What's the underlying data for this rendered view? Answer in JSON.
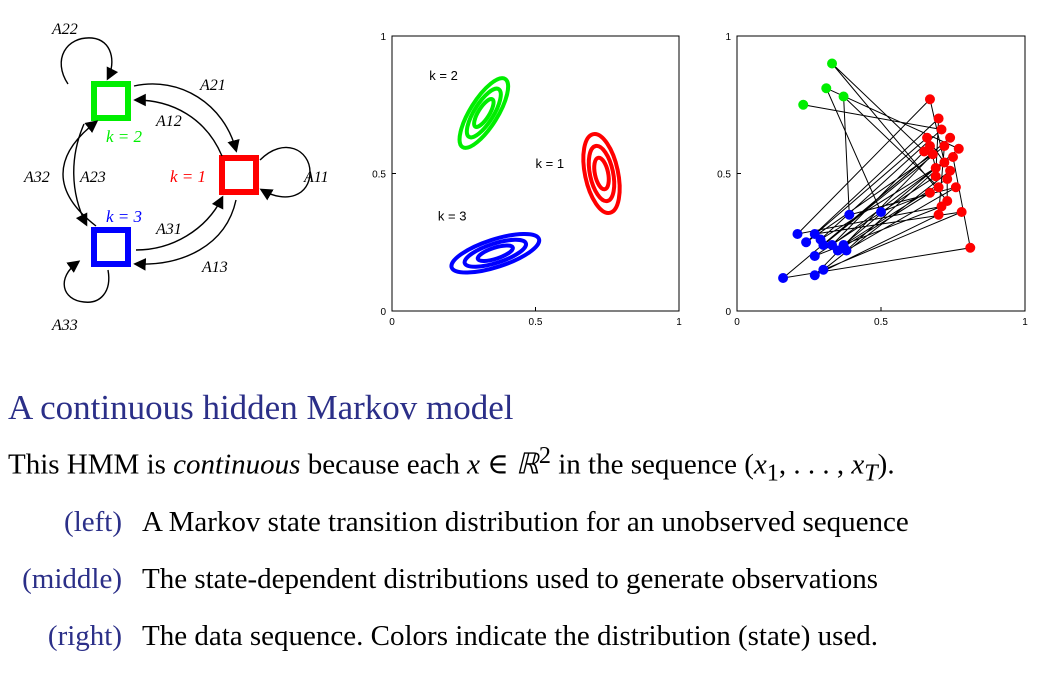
{
  "colors": {
    "state1": "#ff0000",
    "state2": "#00ee00",
    "state3": "#0000ff",
    "title": "#2b2f88"
  },
  "left_diagram": {
    "states": [
      {
        "id": "k1",
        "label": "k = 1",
        "color": "#ff0000"
      },
      {
        "id": "k2",
        "label": "k = 2",
        "color": "#00ee00"
      },
      {
        "id": "k3",
        "label": "k = 3",
        "color": "#0000ff"
      }
    ],
    "transitions": {
      "A11": "A11",
      "A12": "A12",
      "A13": "A13",
      "A21": "A21",
      "A22": "A22",
      "A23": "A23",
      "A31": "A31",
      "A32": "A32",
      "A33": "A33"
    }
  },
  "chart_data": [
    {
      "type": "contour",
      "xlim": [
        0,
        1
      ],
      "ylim": [
        0,
        1
      ],
      "xticks": [
        "0",
        "0.5",
        "1"
      ],
      "yticks": [
        "0",
        "0.5",
        "1"
      ],
      "clusters": [
        {
          "label": "k = 2",
          "color": "#00ee00",
          "center": [
            0.32,
            0.72
          ],
          "radii": [
            0.14,
            0.05
          ],
          "angle_deg": 58
        },
        {
          "label": "k = 1",
          "color": "#ff0000",
          "center": [
            0.73,
            0.5
          ],
          "radii": [
            0.14,
            0.06
          ],
          "angle_deg": -78
        },
        {
          "label": "k = 3",
          "color": "#0000ff",
          "center": [
            0.36,
            0.21
          ],
          "radii": [
            0.16,
            0.05
          ],
          "angle_deg": 18
        }
      ],
      "contour_scales": [
        1.0,
        0.7,
        0.4
      ]
    },
    {
      "type": "scatter",
      "xlim": [
        0,
        1
      ],
      "ylim": [
        0,
        1
      ],
      "xticks": [
        "0",
        "0.5",
        "1"
      ],
      "yticks": [
        "0",
        "0.5",
        "1"
      ],
      "connected": true,
      "points": [
        {
          "x": 0.23,
          "y": 0.75,
          "k": 2
        },
        {
          "x": 0.33,
          "y": 0.9,
          "k": 2
        },
        {
          "x": 0.31,
          "y": 0.81,
          "k": 2
        },
        {
          "x": 0.37,
          "y": 0.78,
          "k": 2
        },
        {
          "x": 0.67,
          "y": 0.77,
          "k": 1
        },
        {
          "x": 0.7,
          "y": 0.7,
          "k": 1
        },
        {
          "x": 0.66,
          "y": 0.63,
          "k": 1
        },
        {
          "x": 0.72,
          "y": 0.6,
          "k": 1
        },
        {
          "x": 0.75,
          "y": 0.56,
          "k": 1
        },
        {
          "x": 0.69,
          "y": 0.52,
          "k": 1
        },
        {
          "x": 0.73,
          "y": 0.48,
          "k": 1
        },
        {
          "x": 0.67,
          "y": 0.43,
          "k": 1
        },
        {
          "x": 0.76,
          "y": 0.45,
          "k": 1
        },
        {
          "x": 0.71,
          "y": 0.38,
          "k": 1
        },
        {
          "x": 0.78,
          "y": 0.36,
          "k": 1
        },
        {
          "x": 0.68,
          "y": 0.57,
          "k": 1
        },
        {
          "x": 0.74,
          "y": 0.63,
          "k": 1
        },
        {
          "x": 0.71,
          "y": 0.66,
          "k": 1
        },
        {
          "x": 0.65,
          "y": 0.58,
          "k": 1
        },
        {
          "x": 0.77,
          "y": 0.59,
          "k": 1
        },
        {
          "x": 0.7,
          "y": 0.45,
          "k": 1
        },
        {
          "x": 0.72,
          "y": 0.54,
          "k": 1
        },
        {
          "x": 0.69,
          "y": 0.49,
          "k": 1
        },
        {
          "x": 0.74,
          "y": 0.51,
          "k": 1
        },
        {
          "x": 0.7,
          "y": 0.35,
          "k": 1
        },
        {
          "x": 0.81,
          "y": 0.23,
          "k": 1
        },
        {
          "x": 0.67,
          "y": 0.6,
          "k": 1
        },
        {
          "x": 0.73,
          "y": 0.4,
          "k": 1
        },
        {
          "x": 0.5,
          "y": 0.36,
          "k": 3
        },
        {
          "x": 0.39,
          "y": 0.35,
          "k": 3
        },
        {
          "x": 0.21,
          "y": 0.28,
          "k": 3
        },
        {
          "x": 0.27,
          "y": 0.28,
          "k": 3
        },
        {
          "x": 0.24,
          "y": 0.25,
          "k": 3
        },
        {
          "x": 0.3,
          "y": 0.24,
          "k": 3
        },
        {
          "x": 0.29,
          "y": 0.26,
          "k": 3
        },
        {
          "x": 0.33,
          "y": 0.24,
          "k": 3
        },
        {
          "x": 0.37,
          "y": 0.24,
          "k": 3
        },
        {
          "x": 0.35,
          "y": 0.22,
          "k": 3
        },
        {
          "x": 0.38,
          "y": 0.22,
          "k": 3
        },
        {
          "x": 0.27,
          "y": 0.2,
          "k": 3
        },
        {
          "x": 0.3,
          "y": 0.15,
          "k": 3
        },
        {
          "x": 0.27,
          "y": 0.13,
          "k": 3
        },
        {
          "x": 0.16,
          "y": 0.12,
          "k": 3
        }
      ]
    }
  ],
  "text": {
    "title": "A continuous hidden Markov model",
    "intro_a": "This HMM is ",
    "intro_b": "continuous",
    "intro_c": " because each ",
    "intro_d": "x ∈ ℝ",
    "intro_sup": "2",
    "intro_e": " in the sequence (",
    "intro_f": "x",
    "intro_sub1": "1",
    "intro_g": ", . . . , ",
    "intro_h": "x",
    "intro_subT": "T",
    "intro_i": ").",
    "items": [
      {
        "tag": "(left)",
        "desc": "A Markov state transition distribution for an unobserved sequence"
      },
      {
        "tag": "(middle)",
        "desc": "The state-dependent distributions used to generate observations"
      },
      {
        "tag": "(right)",
        "desc": "The data sequence. Colors indicate the distribution (state) used."
      }
    ]
  }
}
